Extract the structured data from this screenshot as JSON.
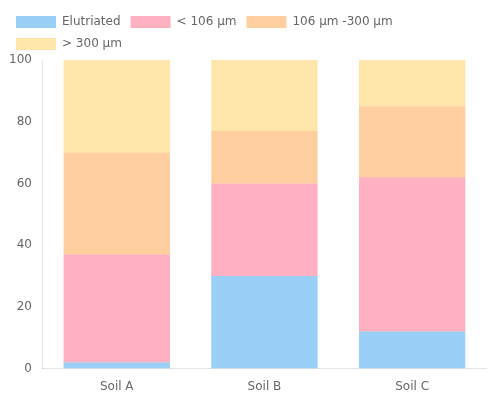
{
  "chart_data": {
    "type": "bar",
    "stacked": true,
    "categories": [
      "Soil A",
      "Soil B",
      "Soil C"
    ],
    "series": [
      {
        "name": "Elutriated",
        "values": [
          2,
          30,
          12
        ]
      },
      {
        "name": "< 106 μm",
        "values": [
          35,
          30,
          50
        ]
      },
      {
        "name": "106 μm -300 μm",
        "values": [
          33,
          17,
          23
        ]
      },
      {
        "name": "> 300 μm",
        "values": [
          30,
          23,
          15
        ]
      }
    ],
    "ylim": [
      0,
      100
    ],
    "yticks": [
      0,
      20,
      40,
      60,
      80,
      100
    ],
    "grid": false,
    "legend": "upper left"
  }
}
